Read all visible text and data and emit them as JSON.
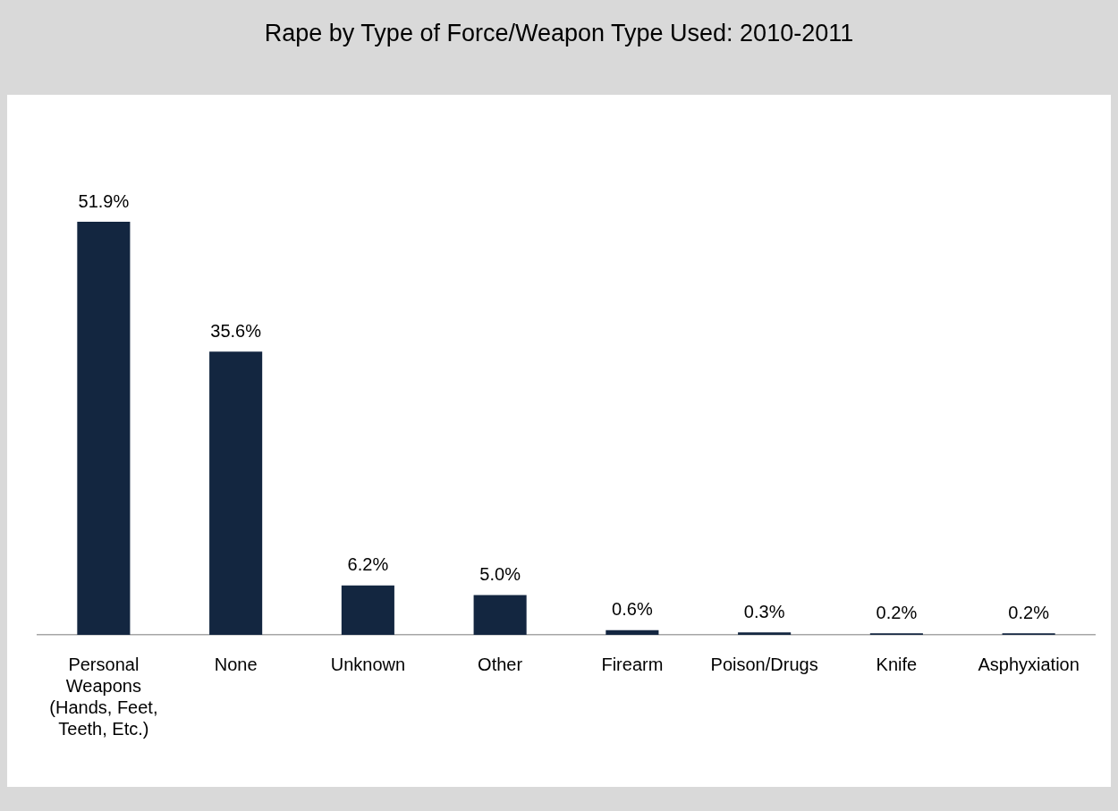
{
  "chart_data": {
    "type": "bar",
    "title": "Rape by Type of Force/Weapon Type Used: 2010-2011",
    "categories": [
      "Personal Weapons (Hands, Feet, Teeth, Etc.)",
      "None",
      "Unknown",
      "Other",
      "Firearm",
      "Poison/Drugs",
      "Knife",
      "Asphyxiation"
    ],
    "values": [
      51.9,
      35.6,
      6.2,
      5.0,
      0.6,
      0.3,
      0.2,
      0.2
    ],
    "value_labels": [
      "51.9%",
      "35.6%",
      "6.2%",
      "5.0%",
      "0.6%",
      "0.3%",
      "0.2%",
      "0.2%"
    ],
    "color": "#132640",
    "grid": false,
    "legend": false
  }
}
